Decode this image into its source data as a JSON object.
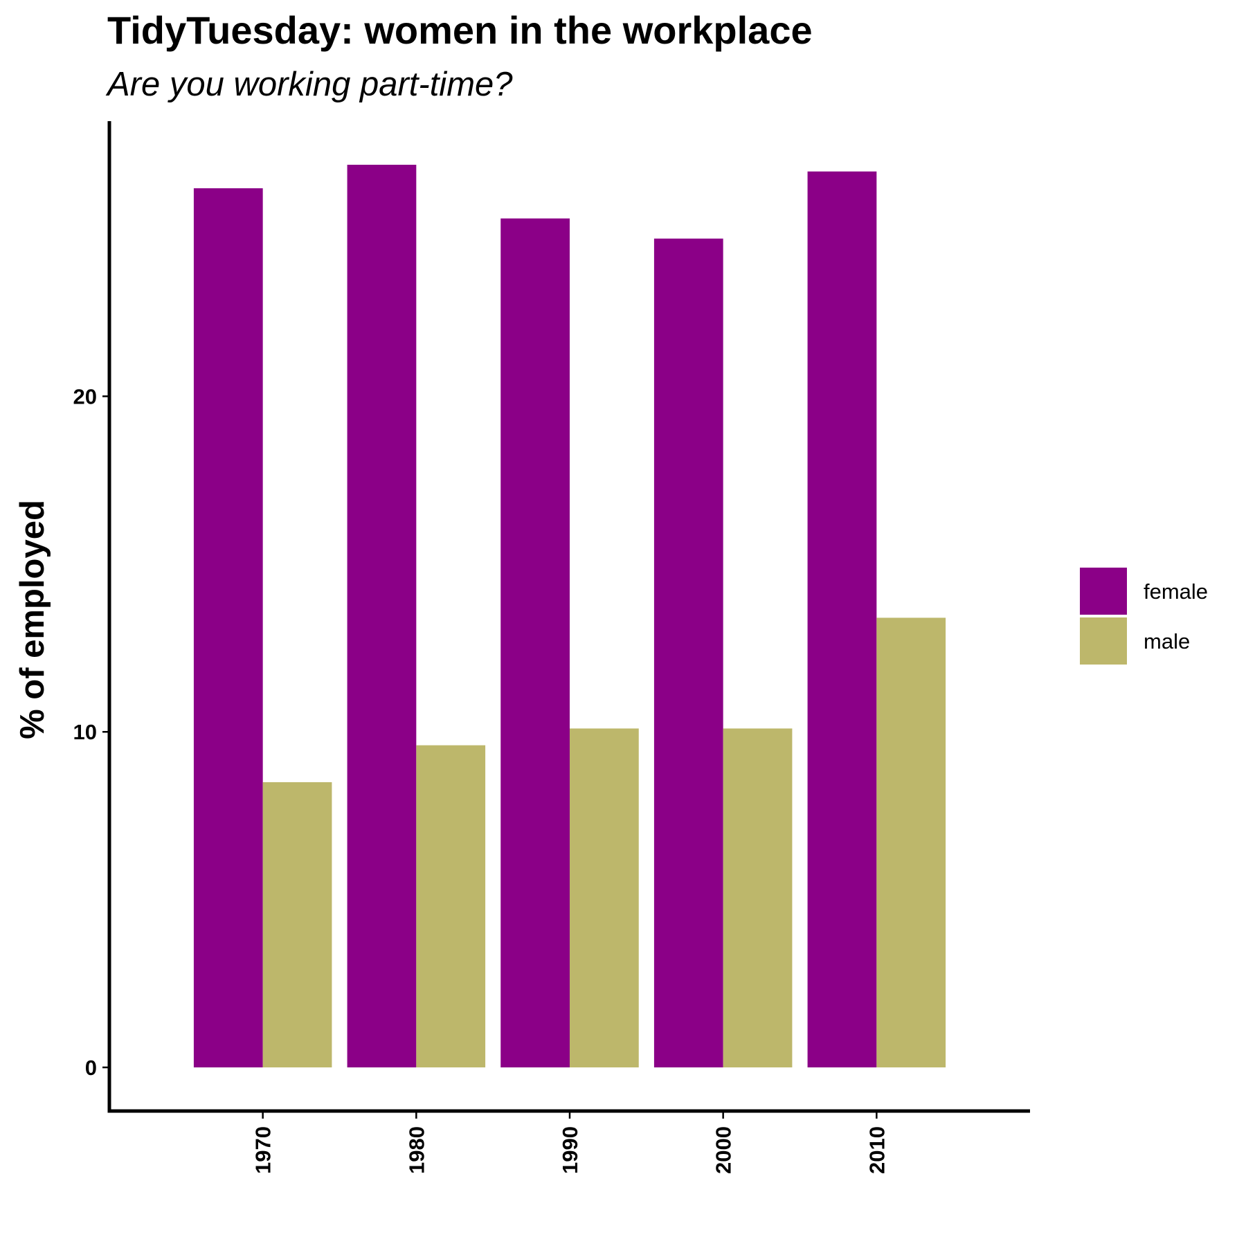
{
  "chart_data": {
    "type": "bar",
    "title": "TidyTuesday: women in the workplace",
    "subtitle": "Are you working part-time?",
    "xlabel": "",
    "ylabel": "% of employed",
    "categories": [
      "1970",
      "1980",
      "1990",
      "2000",
      "2010"
    ],
    "series": [
      {
        "name": "female",
        "color": "#8B0087",
        "values": [
          26.2,
          26.9,
          25.3,
          24.7,
          26.7
        ]
      },
      {
        "name": "male",
        "color": "#BDB76B",
        "values": [
          8.5,
          9.6,
          10.1,
          10.1,
          13.4
        ]
      }
    ],
    "yticks": [
      0,
      10,
      20
    ],
    "ylim": [
      -1.3,
      28.2
    ],
    "grid": false,
    "legend_position": "right",
    "x_tick_rotation": "vertical"
  }
}
